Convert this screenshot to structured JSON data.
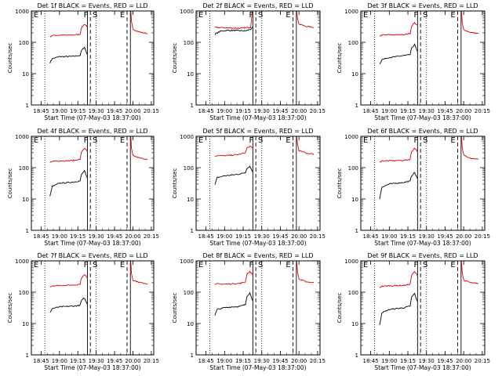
{
  "x_tick_labels": [
    "18:45",
    "19:00",
    "19:15",
    "19:30",
    "19:45",
    "20:00",
    "20:15"
  ],
  "y_tick_labels": [
    "1",
    "10",
    "100",
    "1000"
  ],
  "xlabel": "Start Time (07-May-03 18:37:00)",
  "ylabel": "Counts/sec",
  "line_colors": {
    "events": "#000000",
    "lld": "#e00000",
    "markers": "#000000"
  },
  "chart_data": [
    {
      "type": "line",
      "title": "Det 1f BLACK = Events, RED = LLD",
      "markers": [
        "F",
        "S",
        "E"
      ],
      "ylim": [
        1,
        1000
      ],
      "yscale": "log",
      "grid": false,
      "series": [
        {
          "name": "Events",
          "points": [
            [
              18.87,
              22
            ],
            [
              18.9,
              30
            ],
            [
              19.0,
              35
            ],
            [
              19.1,
              35
            ],
            [
              19.2,
              36
            ],
            [
              19.28,
              38
            ],
            [
              19.3,
              55
            ],
            [
              19.34,
              70
            ],
            [
              19.37,
              45
            ],
            [
              19.38,
              42
            ]
          ],
          "points_after": []
        },
        {
          "name": "LLD",
          "points": [
            [
              18.87,
              150
            ],
            [
              18.9,
              165
            ],
            [
              19.0,
              170
            ],
            [
              19.1,
              168
            ],
            [
              19.2,
              172
            ],
            [
              19.28,
              180
            ],
            [
              19.3,
              300
            ],
            [
              19.34,
              380
            ],
            [
              19.37,
              330
            ],
            [
              19.38,
              320
            ]
          ],
          "points_after": [
            [
              19.97,
              1000
            ],
            [
              19.98,
              450
            ],
            [
              20.0,
              260
            ],
            [
              20.1,
              210
            ],
            [
              20.2,
              190
            ]
          ]
        }
      ]
    },
    {
      "type": "line",
      "title": "Det 2f BLACK = Events, RED = LLD",
      "markers": [
        "F",
        "S",
        "E"
      ],
      "ylim": [
        1,
        1000
      ],
      "yscale": "log",
      "grid": false,
      "series": [
        {
          "name": "Events",
          "points": [
            [
              18.87,
              180
            ],
            [
              18.95,
              230
            ],
            [
              19.05,
              240
            ],
            [
              19.2,
              235
            ],
            [
              19.28,
              230
            ],
            [
              19.35,
              260
            ],
            [
              19.37,
              290
            ],
            [
              19.38,
              300
            ]
          ],
          "points_after": []
        },
        {
          "name": "LLD",
          "points": [
            [
              18.87,
              300
            ],
            [
              19.0,
              290
            ],
            [
              19.1,
              285
            ],
            [
              19.2,
              280
            ],
            [
              19.28,
              290
            ],
            [
              19.35,
              300
            ],
            [
              19.37,
              900
            ],
            [
              19.38,
              1000
            ]
          ],
          "points_after": [
            [
              19.97,
              1000
            ],
            [
              19.98,
              600
            ],
            [
              20.0,
              380
            ],
            [
              20.1,
              320
            ],
            [
              20.2,
              300
            ]
          ]
        }
      ]
    },
    {
      "type": "line",
      "title": "Det 3f BLACK = Events, RED = LLD",
      "markers": [
        "F",
        "S",
        "E"
      ],
      "ylim": [
        1,
        1000
      ],
      "yscale": "log",
      "grid": false,
      "series": [
        {
          "name": "Events",
          "points": [
            [
              18.87,
              20
            ],
            [
              18.9,
              28
            ],
            [
              19.0,
              33
            ],
            [
              19.1,
              35
            ],
            [
              19.2,
              38
            ],
            [
              19.28,
              40
            ],
            [
              19.3,
              65
            ],
            [
              19.34,
              85
            ],
            [
              19.37,
              55
            ],
            [
              19.38,
              50
            ]
          ],
          "points_after": []
        },
        {
          "name": "LLD",
          "points": [
            [
              18.87,
              160
            ],
            [
              18.9,
              170
            ],
            [
              19.0,
              175
            ],
            [
              19.1,
              172
            ],
            [
              19.2,
              178
            ],
            [
              19.28,
              190
            ],
            [
              19.3,
              330
            ],
            [
              19.34,
              420
            ],
            [
              19.37,
              360
            ],
            [
              19.38,
              340
            ]
          ],
          "points_after": [
            [
              19.97,
              1000
            ],
            [
              19.98,
              420
            ],
            [
              20.0,
              250
            ],
            [
              20.1,
              205
            ],
            [
              20.2,
              190
            ]
          ]
        }
      ]
    },
    {
      "type": "line",
      "title": "Det 4f BLACK = Events, RED = LLD",
      "markers": [
        "F",
        "S",
        "E"
      ],
      "ylim": [
        1,
        1000
      ],
      "yscale": "log",
      "grid": false,
      "series": [
        {
          "name": "Events",
          "points": [
            [
              18.87,
              12
            ],
            [
              18.9,
              25
            ],
            [
              19.0,
              32
            ],
            [
              19.1,
              33
            ],
            [
              19.2,
              35
            ],
            [
              19.28,
              38
            ],
            [
              19.3,
              60
            ],
            [
              19.34,
              80
            ],
            [
              19.37,
              50
            ],
            [
              19.38,
              46
            ]
          ],
          "points_after": []
        },
        {
          "name": "LLD",
          "points": [
            [
              18.87,
              145
            ],
            [
              18.9,
              160
            ],
            [
              19.0,
              165
            ],
            [
              19.1,
              165
            ],
            [
              19.2,
              170
            ],
            [
              19.28,
              185
            ],
            [
              19.3,
              320
            ],
            [
              19.34,
              420
            ],
            [
              19.37,
              350
            ],
            [
              19.38,
              330
            ]
          ],
          "points_after": [
            [
              19.97,
              1000
            ],
            [
              19.98,
              400
            ],
            [
              20.0,
              240
            ],
            [
              20.1,
              200
            ],
            [
              20.2,
              185
            ]
          ]
        }
      ]
    },
    {
      "type": "line",
      "title": "Det 5f BLACK = Events, RED = LLD",
      "markers": [
        "F",
        "S",
        "E"
      ],
      "ylim": [
        1,
        1000
      ],
      "yscale": "log",
      "grid": false,
      "series": [
        {
          "name": "Events",
          "points": [
            [
              18.87,
              28
            ],
            [
              18.9,
              48
            ],
            [
              19.0,
              55
            ],
            [
              19.1,
              58
            ],
            [
              19.2,
              62
            ],
            [
              19.28,
              70
            ],
            [
              19.3,
              95
            ],
            [
              19.34,
              110
            ],
            [
              19.37,
              80
            ],
            [
              19.38,
              75
            ]
          ],
          "points_after": []
        },
        {
          "name": "LLD",
          "points": [
            [
              18.87,
              230
            ],
            [
              18.9,
              245
            ],
            [
              19.0,
              240
            ],
            [
              19.1,
              250
            ],
            [
              19.2,
              265
            ],
            [
              19.28,
              300
            ],
            [
              19.3,
              420
            ],
            [
              19.34,
              480
            ],
            [
              19.37,
              430
            ],
            [
              19.38,
              410
            ]
          ],
          "points_after": [
            [
              19.97,
              1000
            ],
            [
              19.98,
              550
            ],
            [
              20.0,
              350
            ],
            [
              20.1,
              290
            ],
            [
              20.2,
              270
            ]
          ]
        }
      ]
    },
    {
      "type": "line",
      "title": "Det 6f BLACK = Events, RED = LLD",
      "markers": [
        "F",
        "S",
        "E"
      ],
      "ylim": [
        1,
        1000
      ],
      "yscale": "log",
      "grid": false,
      "series": [
        {
          "name": "Events",
          "points": [
            [
              18.87,
              10
            ],
            [
              18.9,
              24
            ],
            [
              19.0,
              30
            ],
            [
              19.1,
              32
            ],
            [
              19.2,
              34
            ],
            [
              19.28,
              37
            ],
            [
              19.3,
              55
            ],
            [
              19.34,
              70
            ],
            [
              19.37,
              48
            ],
            [
              19.38,
              45
            ]
          ],
          "points_after": []
        },
        {
          "name": "LLD",
          "points": [
            [
              18.87,
              150
            ],
            [
              18.9,
              165
            ],
            [
              19.0,
              165
            ],
            [
              19.1,
              168
            ],
            [
              19.2,
              170
            ],
            [
              19.28,
              185
            ],
            [
              19.3,
              330
            ],
            [
              19.34,
              420
            ],
            [
              19.37,
              350
            ],
            [
              19.38,
              330
            ]
          ],
          "points_after": [
            [
              19.97,
              1000
            ],
            [
              19.98,
              430
            ],
            [
              20.0,
              250
            ],
            [
              20.1,
              200
            ],
            [
              20.2,
              185
            ]
          ]
        }
      ]
    },
    {
      "type": "line",
      "title": "Det 7f BLACK = Events, RED = LLD",
      "markers": [
        "F",
        "S",
        "E"
      ],
      "ylim": [
        1,
        1000
      ],
      "yscale": "log",
      "grid": false,
      "series": [
        {
          "name": "Events",
          "points": [
            [
              18.87,
              22
            ],
            [
              18.9,
              30
            ],
            [
              19.0,
              34
            ],
            [
              19.1,
              35
            ],
            [
              19.2,
              36
            ],
            [
              19.28,
              38
            ],
            [
              19.3,
              55
            ],
            [
              19.34,
              65
            ],
            [
              19.37,
              45
            ],
            [
              19.38,
              42
            ]
          ],
          "points_after": []
        },
        {
          "name": "LLD",
          "points": [
            [
              18.87,
              150
            ],
            [
              18.9,
              160
            ],
            [
              19.0,
              165
            ],
            [
              19.1,
              165
            ],
            [
              19.2,
              170
            ],
            [
              19.28,
              180
            ],
            [
              19.3,
              290
            ],
            [
              19.34,
              360
            ],
            [
              19.37,
              310
            ],
            [
              19.38,
              300
            ]
          ],
          "points_after": [
            [
              19.97,
              1000
            ],
            [
              19.98,
              400
            ],
            [
              20.0,
              240
            ],
            [
              20.1,
              200
            ],
            [
              20.2,
              185
            ]
          ]
        }
      ]
    },
    {
      "type": "line",
      "title": "Det 8f BLACK = Events, RED = LLD",
      "markers": [
        "F",
        "S",
        "E"
      ],
      "ylim": [
        1,
        1000
      ],
      "yscale": "log",
      "grid": false,
      "series": [
        {
          "name": "Events",
          "points": [
            [
              18.87,
              18
            ],
            [
              18.9,
              28
            ],
            [
              19.0,
              32
            ],
            [
              19.1,
              34
            ],
            [
              19.2,
              35
            ],
            [
              19.28,
              40
            ],
            [
              19.3,
              75
            ],
            [
              19.34,
              95
            ],
            [
              19.37,
              60
            ],
            [
              19.38,
              55
            ]
          ],
          "points_after": []
        },
        {
          "name": "LLD",
          "points": [
            [
              18.87,
              170
            ],
            [
              18.9,
              185
            ],
            [
              19.0,
              180
            ],
            [
              19.1,
              185
            ],
            [
              19.2,
              190
            ],
            [
              19.28,
              210
            ],
            [
              19.3,
              380
            ],
            [
              19.34,
              450
            ],
            [
              19.37,
              380
            ],
            [
              19.38,
              360
            ]
          ],
          "points_after": [
            [
              19.97,
              1000
            ],
            [
              19.98,
              450
            ],
            [
              20.0,
              260
            ],
            [
              20.1,
              215
            ],
            [
              20.2,
              200
            ]
          ]
        }
      ]
    },
    {
      "type": "line",
      "title": "Det 9f BLACK = Events, RED = LLD",
      "markers": [
        "F",
        "S",
        "E"
      ],
      "ylim": [
        1,
        1000
      ],
      "yscale": "log",
      "grid": false,
      "series": [
        {
          "name": "Events",
          "points": [
            [
              18.87,
              9
            ],
            [
              18.9,
              22
            ],
            [
              19.0,
              28
            ],
            [
              19.1,
              30
            ],
            [
              19.2,
              32
            ],
            [
              19.28,
              36
            ],
            [
              19.3,
              70
            ],
            [
              19.34,
              90
            ],
            [
              19.37,
              55
            ],
            [
              19.38,
              50
            ]
          ],
          "points_after": []
        },
        {
          "name": "LLD",
          "points": [
            [
              18.87,
              140
            ],
            [
              18.9,
              155
            ],
            [
              19.0,
              160
            ],
            [
              19.1,
              162
            ],
            [
              19.2,
              165
            ],
            [
              19.28,
              180
            ],
            [
              19.3,
              350
            ],
            [
              19.34,
              450
            ],
            [
              19.37,
              360
            ],
            [
              19.38,
              340
            ]
          ],
          "points_after": [
            [
              19.97,
              1000
            ],
            [
              19.98,
              420
            ],
            [
              20.0,
              240
            ],
            [
              20.1,
              200
            ],
            [
              20.2,
              185
            ]
          ]
        }
      ]
    }
  ]
}
